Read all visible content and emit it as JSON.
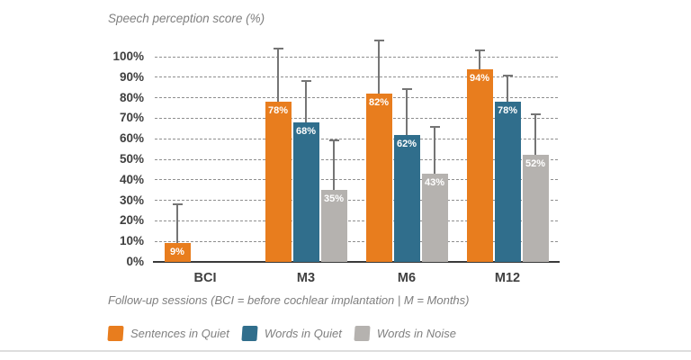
{
  "header": {
    "title": "Speech perception score (%)"
  },
  "footer": {
    "x_axis_caption": "Follow-up sessions (BCI = before cochlear implantation | M = Months)"
  },
  "chart_data": {
    "type": "bar",
    "title": "Speech perception score (%)",
    "xlabel": "Follow-up sessions (BCI = before cochlear implantation | M = Months)",
    "ylabel": "Speech perception score (%)",
    "categories": [
      "BCI",
      "M3",
      "M6",
      "M12"
    ],
    "series": [
      {
        "name": "Sentences in Quiet",
        "color": "#E87D1E",
        "values": [
          9,
          78,
          82,
          94
        ],
        "value_labels": [
          "9%",
          "78%",
          "82%",
          "94%"
        ],
        "error_bar_tops": [
          28,
          104,
          108,
          103
        ]
      },
      {
        "name": "Words in Quiet",
        "color": "#306E8C",
        "values": [
          null,
          68,
          62,
          78
        ],
        "value_labels": [
          null,
          "68%",
          "62%",
          "78%"
        ],
        "error_bar_tops": [
          null,
          88,
          84,
          91
        ]
      },
      {
        "name": "Words in Noise",
        "color": "#B5B2AF",
        "values": [
          null,
          35,
          43,
          52
        ],
        "value_labels": [
          null,
          "35%",
          "43%",
          "52%"
        ],
        "error_bar_tops": [
          null,
          59,
          66,
          72
        ]
      }
    ],
    "yticks": [
      "0%",
      "10%",
      "20%",
      "30%",
      "40%",
      "50%",
      "60%",
      "70%",
      "80%",
      "90%",
      "100%"
    ],
    "ytick_values": [
      0,
      10,
      20,
      30,
      40,
      50,
      60,
      70,
      80,
      90,
      100
    ],
    "ylim": [
      0,
      110
    ],
    "grid": "horizontal-dashed",
    "error_bars": "upper-whisker-with-cap",
    "legend_position": "bottom-left"
  },
  "legend": {
    "items": [
      {
        "label": "Sentences in Quiet",
        "color": "#E87D1E"
      },
      {
        "label": "Words in Quiet",
        "color": "#306E8C"
      },
      {
        "label": "Words in Noise",
        "color": "#B5B2AF"
      }
    ]
  }
}
